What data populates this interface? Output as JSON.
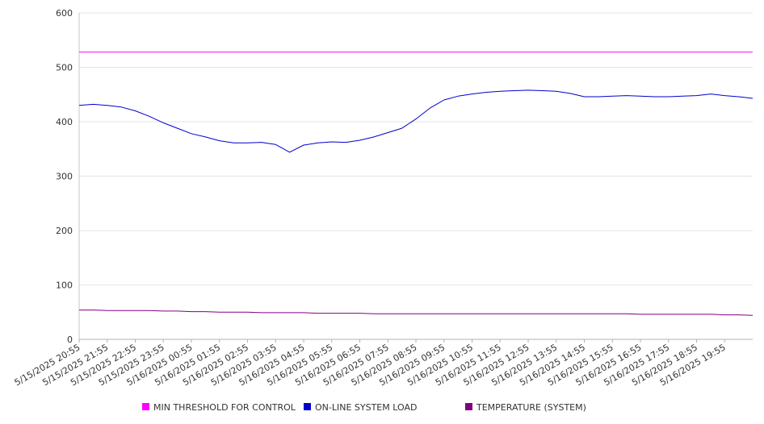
{
  "chart_data": {
    "type": "line",
    "y_ticks": [
      0,
      100,
      200,
      300,
      400,
      500,
      600
    ],
    "ylim": [
      0,
      600
    ],
    "x_tick_labels": [
      "5/15/2025 20:55",
      "5/15/2025 21:55",
      "5/15/2025 22:55",
      "5/15/2025 23:55",
      "5/16/2025 00:55",
      "5/16/2025 01:55",
      "5/16/2025 02:55",
      "5/16/2025 03:55",
      "5/16/2025 04:55",
      "5/16/2025 05:55",
      "5/16/2025 06:55",
      "5/16/2025 07:55",
      "5/16/2025 08:55",
      "5/16/2025 09:55",
      "5/16/2025 10:55",
      "5/16/2025 11:55",
      "5/16/2025 12:55",
      "5/16/2025 13:55",
      "5/16/2025 14:55",
      "5/16/2025 15:55",
      "5/16/2025 16:55",
      "5/16/2025 17:55",
      "5/16/2025 18:55",
      "5/16/2025 19:55"
    ],
    "x_hours": [
      0,
      0.5,
      1,
      1.5,
      2,
      2.5,
      3,
      3.5,
      4,
      4.5,
      5,
      5.5,
      6,
      6.5,
      7,
      7.5,
      8,
      8.5,
      9,
      9.5,
      10,
      10.5,
      11,
      11.5,
      12,
      12.5,
      13,
      13.5,
      14,
      14.5,
      15,
      15.5,
      16,
      16.5,
      17,
      17.5,
      18,
      18.5,
      19,
      19.5,
      20,
      20.5,
      21,
      21.5,
      22,
      22.5,
      23,
      23.5,
      24
    ],
    "grid": true,
    "legend_position": "bottom",
    "series": [
      {
        "name": "MIN THRESHOLD FOR CONTROL",
        "color": "#ff00ff",
        "values": [
          528,
          528,
          528,
          528,
          528,
          528,
          528,
          528,
          528,
          528,
          528,
          528,
          528,
          528,
          528,
          528,
          528,
          528,
          528,
          528,
          528,
          528,
          528,
          528,
          528,
          528,
          528,
          528,
          528,
          528,
          528,
          528,
          528,
          528,
          528,
          528,
          528,
          528,
          528,
          528,
          528,
          528,
          528,
          528,
          528,
          528,
          528,
          528,
          528
        ]
      },
      {
        "name": "ON-LINE SYSTEM LOAD",
        "color": "#0000cc",
        "values": [
          430,
          432,
          430,
          427,
          420,
          410,
          398,
          388,
          378,
          372,
          365,
          361,
          361,
          362,
          358,
          344,
          357,
          361,
          363,
          362,
          366,
          372,
          380,
          388,
          405,
          425,
          440,
          447,
          451,
          454,
          456,
          457,
          458,
          457,
          456,
          452,
          446,
          446,
          447,
          448,
          447,
          446,
          446,
          447,
          448,
          451,
          448,
          446,
          443
        ]
      },
      {
        "name": "TEMPERATURE (SYSTEM)",
        "color": "#800080",
        "values": [
          54,
          54,
          53,
          53,
          53,
          53,
          52,
          52,
          51,
          51,
          50,
          50,
          50,
          49,
          49,
          49,
          49,
          48,
          48,
          48,
          48,
          47,
          47,
          47,
          47,
          47,
          47,
          47,
          47,
          47,
          47,
          47,
          47,
          47,
          47,
          47,
          47,
          47,
          47,
          47,
          46,
          46,
          46,
          46,
          46,
          46,
          45,
          45,
          44
        ]
      }
    ]
  }
}
